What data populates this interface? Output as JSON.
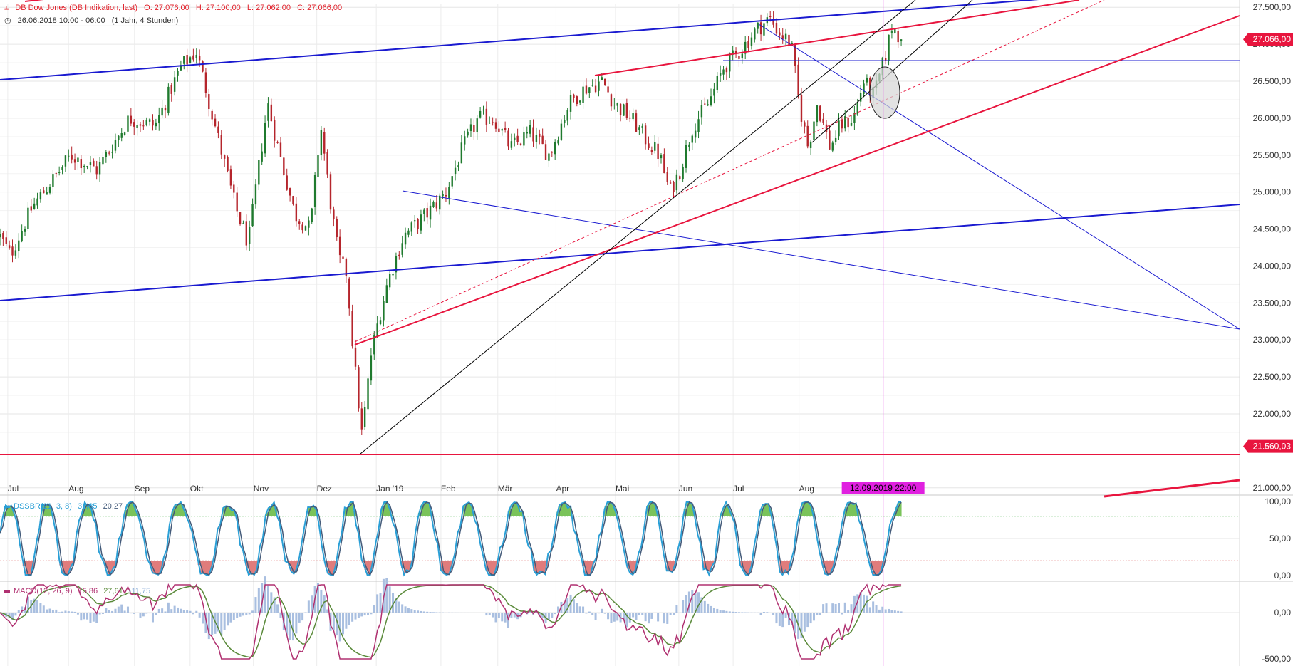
{
  "instrument": {
    "name": "DB Dow Jones (DB Indikation, last)",
    "open": "O: 27.076,00",
    "high": "H: 27.100,00",
    "low": "L: 27.062,00",
    "close": "C: 27.066,00",
    "period": "26.06.2018 10:00 - 06:00",
    "interval": "(1 Jahr, 4 Stunden)"
  },
  "colors": {
    "up": "#1f7a2e",
    "down": "#b5252c",
    "channel_blue": "#1a1ad0",
    "trend_red": "#e8153e",
    "crosshair": "#e020e0",
    "price_tag": "#e8153e",
    "stoch_main": "#2a9fd6",
    "stoch_signal": "#445b7a",
    "macd_line": "#b03070",
    "macd_signal": "#5a8a3a",
    "macd_hist": "#a9bfe0"
  },
  "chart_data": {
    "type": "candlestick",
    "y_axis": {
      "range": [
        20950,
        27550
      ],
      "ticks": [
        "27.500,00",
        "27.000,00",
        "26.500,00",
        "26.000,00",
        "25.500,00",
        "25.000,00",
        "24.500,00",
        "24.000,00",
        "23.500,00",
        "23.000,00",
        "22.500,00",
        "22.000,00",
        "21.000,00"
      ],
      "tick_values": [
        27500,
        27000,
        26500,
        26000,
        25500,
        25000,
        24500,
        24000,
        23500,
        23000,
        22500,
        22000,
        21000
      ]
    },
    "x_axis": {
      "labels": [
        "Jul",
        "Aug",
        "Sep",
        "Okt",
        "Nov",
        "Dez",
        "Jan '19",
        "Feb",
        "Mär",
        "Apr",
        "Mai",
        "Jun",
        "Jul",
        "Aug"
      ],
      "label_fraction": [
        0.006,
        0.053,
        0.104,
        0.147,
        0.196,
        0.245,
        0.291,
        0.341,
        0.385,
        0.43,
        0.476,
        0.525,
        0.567,
        0.618
      ]
    },
    "anchors": [
      {
        "t": 0.0,
        "v": 24400
      },
      {
        "t": 0.008,
        "v": 24150
      },
      {
        "t": 0.025,
        "v": 24800
      },
      {
        "t": 0.055,
        "v": 25500
      },
      {
        "t": 0.075,
        "v": 25300
      },
      {
        "t": 0.1,
        "v": 26000
      },
      {
        "t": 0.12,
        "v": 25900
      },
      {
        "t": 0.14,
        "v": 26700
      },
      {
        "t": 0.152,
        "v": 26900
      },
      {
        "t": 0.162,
        "v": 26200
      },
      {
        "t": 0.172,
        "v": 25500
      },
      {
        "t": 0.182,
        "v": 24800
      },
      {
        "t": 0.192,
        "v": 24300
      },
      {
        "t": 0.207,
        "v": 26200
      },
      {
        "t": 0.215,
        "v": 25600
      },
      {
        "t": 0.228,
        "v": 24700
      },
      {
        "t": 0.24,
        "v": 24500
      },
      {
        "t": 0.248,
        "v": 25900
      },
      {
        "t": 0.256,
        "v": 24800
      },
      {
        "t": 0.262,
        "v": 24100
      },
      {
        "t": 0.268,
        "v": 23900
      },
      {
        "t": 0.274,
        "v": 22700
      },
      {
        "t": 0.28,
        "v": 21700
      },
      {
        "t": 0.287,
        "v": 22800
      },
      {
        "t": 0.293,
        "v": 23300
      },
      {
        "t": 0.3,
        "v": 23800
      },
      {
        "t": 0.312,
        "v": 24400
      },
      {
        "t": 0.33,
        "v": 24700
      },
      {
        "t": 0.345,
        "v": 25000
      },
      {
        "t": 0.358,
        "v": 25600
      },
      {
        "t": 0.37,
        "v": 26000
      },
      {
        "t": 0.382,
        "v": 26000
      },
      {
        "t": 0.395,
        "v": 25600
      },
      {
        "t": 0.41,
        "v": 25800
      },
      {
        "t": 0.425,
        "v": 25500
      },
      {
        "t": 0.44,
        "v": 26200
      },
      {
        "t": 0.452,
        "v": 26400
      },
      {
        "t": 0.466,
        "v": 26500
      },
      {
        "t": 0.475,
        "v": 26200
      },
      {
        "t": 0.488,
        "v": 26000
      },
      {
        "t": 0.5,
        "v": 25700
      },
      {
        "t": 0.51,
        "v": 25500
      },
      {
        "t": 0.518,
        "v": 25000
      },
      {
        "t": 0.526,
        "v": 25300
      },
      {
        "t": 0.536,
        "v": 25900
      },
      {
        "t": 0.548,
        "v": 26200
      },
      {
        "t": 0.56,
        "v": 26700
      },
      {
        "t": 0.572,
        "v": 26900
      },
      {
        "t": 0.585,
        "v": 27200
      },
      {
        "t": 0.595,
        "v": 27350
      },
      {
        "t": 0.603,
        "v": 27150
      },
      {
        "t": 0.612,
        "v": 27000
      },
      {
        "t": 0.618,
        "v": 26200
      },
      {
        "t": 0.625,
        "v": 25600
      },
      {
        "t": 0.632,
        "v": 26200
      },
      {
        "t": 0.642,
        "v": 25600
      },
      {
        "t": 0.65,
        "v": 25900
      },
      {
        "t": 0.66,
        "v": 26000
      },
      {
        "t": 0.668,
        "v": 26500
      },
      {
        "t": 0.676,
        "v": 26300
      },
      {
        "t": 0.684,
        "v": 26800
      },
      {
        "t": 0.69,
        "v": 27250
      },
      {
        "t": 0.697,
        "v": 27066
      }
    ],
    "last_close": 27066,
    "horizontal_level": 21560.03
  },
  "price_tags": {
    "last": "27.066,00",
    "level": "21.560,03"
  },
  "crosshair": {
    "label": "12.09.2019 22:00",
    "time_fraction": 0.683
  },
  "stoch": {
    "label": "DSSBR(21, 3, 8)",
    "v1": "31,85",
    "v2": "20,27",
    "ticks": [
      "100,00",
      "50,00",
      "0,00"
    ],
    "tick_values": [
      100,
      50,
      0
    ],
    "upper_band": 80,
    "lower_band": 20
  },
  "macd": {
    "label": "MACD(12, 26, 9)",
    "v1": "15,86",
    "v2": "27,61",
    "v3": "-11,75",
    "ticks": [
      "0,00",
      "-500,00"
    ],
    "tick_values": [
      0,
      -500
    ]
  }
}
